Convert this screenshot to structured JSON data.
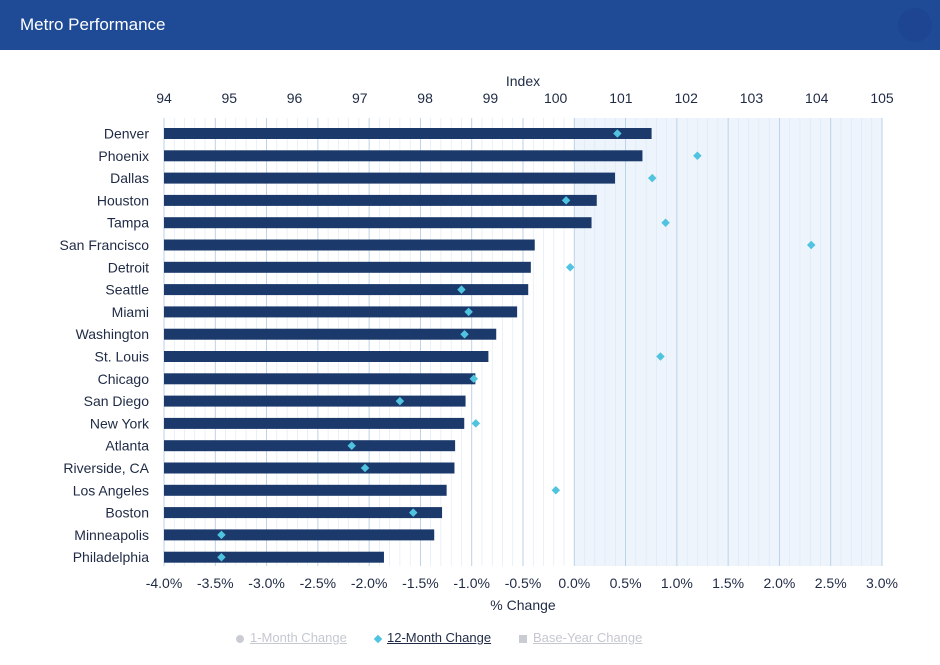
{
  "header": {
    "title": "Metro Performance"
  },
  "legend": {
    "items": [
      {
        "label": "1-Month Change",
        "marker": "circle-icon",
        "active": false
      },
      {
        "label": "12-Month Change",
        "marker": "diamond-icon",
        "active": true
      },
      {
        "label": "Base-Year Change",
        "marker": "square-icon",
        "active": false
      }
    ]
  },
  "colors": {
    "header": "#1e4a96",
    "bar": "#1b3a6b",
    "marker": "#4fc3e0",
    "plot_band": "#edf4fb"
  },
  "chart_data": {
    "type": "bar",
    "orientation": "horizontal",
    "categories": [
      "Denver",
      "Phoenix",
      "Dallas",
      "Houston",
      "Tampa",
      "San Francisco",
      "Detroit",
      "Seattle",
      "Miami",
      "Washington",
      "St. Louis",
      "Chicago",
      "San Diego",
      "New York",
      "Atlanta",
      "Riverside, CA",
      "Los Angeles",
      "Boston",
      "Minneapolis",
      "Philadelphia"
    ],
    "series": [
      {
        "name": "Index",
        "axis": "top",
        "values": [
          101.47,
          101.33,
          100.91,
          100.63,
          100.55,
          99.68,
          99.62,
          99.58,
          99.41,
          99.09,
          98.97,
          98.77,
          98.62,
          98.6,
          98.46,
          98.45,
          98.33,
          98.26,
          98.14,
          97.37
        ]
      },
      {
        "name": "12-Month Change",
        "axis": "bottom",
        "values": [
          0.42,
          1.2,
          0.76,
          -0.08,
          0.89,
          2.31,
          -0.04,
          -1.1,
          -1.03,
          -1.07,
          0.84,
          -0.98,
          -1.7,
          -0.96,
          -2.17,
          -2.04,
          -0.18,
          -1.57,
          -3.44,
          -3.44
        ]
      }
    ],
    "x_top": {
      "label": "Index",
      "ticks": [
        "94",
        "95",
        "96",
        "97",
        "98",
        "99",
        "100",
        "101",
        "102",
        "103",
        "104",
        "105"
      ],
      "range": [
        94,
        105
      ]
    },
    "x_bottom": {
      "label": "% Change",
      "ticks": [
        "-4.0%",
        "-3.5%",
        "-3.0%",
        "-2.5%",
        "-2.0%",
        "-1.5%",
        "-1.0%",
        "-0.5%",
        "0.0%",
        "0.5%",
        "1.0%",
        "1.5%",
        "2.0%",
        "2.5%",
        "3.0%"
      ],
      "range": [
        -4.0,
        3.0
      ]
    },
    "grid": true
  }
}
